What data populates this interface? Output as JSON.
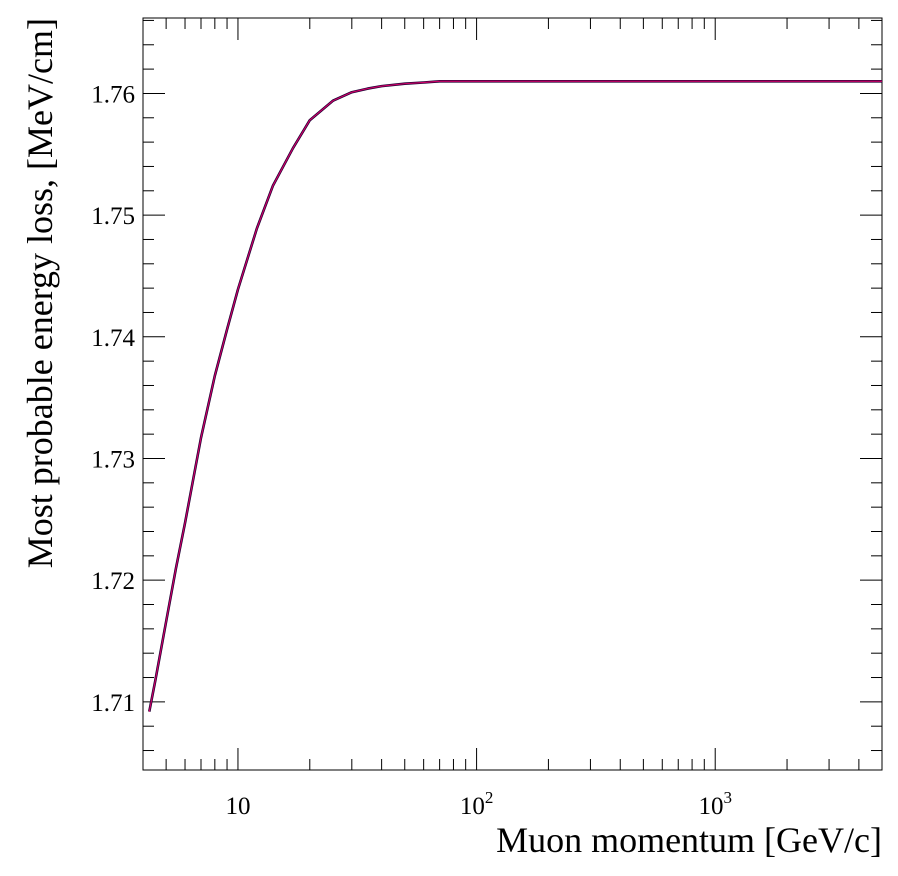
{
  "chart_data": {
    "type": "line",
    "title": "",
    "xlabel": "Muon momentum [GeV/c]",
    "ylabel": "Most probable energy loss, [MeV/cm]",
    "xscale": "log",
    "xlim": [
      4.0,
      5000
    ],
    "ylim": [
      1.7044,
      1.7662
    ],
    "grid": false,
    "legend": "none",
    "x_ticks": [
      {
        "value": 10,
        "base": "10",
        "exp": ""
      },
      {
        "value": 100,
        "base": "10",
        "exp": "2"
      },
      {
        "value": 1000,
        "base": "10",
        "exp": "3"
      }
    ],
    "y_ticks": [
      {
        "value": 1.71,
        "label": "1.71"
      },
      {
        "value": 1.72,
        "label": "1.72"
      },
      {
        "value": 1.73,
        "label": "1.73"
      },
      {
        "value": 1.74,
        "label": "1.74"
      },
      {
        "value": 1.75,
        "label": "1.75"
      },
      {
        "value": 1.76,
        "label": "1.76"
      }
    ],
    "series": [
      {
        "color": "#cc0066",
        "x": [
          4.25,
          4.5,
          5.0,
          5.5,
          6.0,
          7.0,
          8.0,
          9.0,
          10.0,
          12.0,
          14.0,
          17.0,
          20.0,
          25.0,
          30.0,
          35.0,
          40.0,
          50.0,
          60.0,
          70.0,
          80.0,
          100.0,
          200.0,
          500.0,
          1000.0,
          2000.0,
          5000.0
        ],
        "y": [
          1.7092,
          1.7117,
          1.7166,
          1.721,
          1.7247,
          1.7317,
          1.7368,
          1.7406,
          1.7439,
          1.7489,
          1.7524,
          1.7555,
          1.7578,
          1.7594,
          1.7601,
          1.7604,
          1.7606,
          1.7608,
          1.7609,
          1.761,
          1.761,
          1.761,
          1.761,
          1.761,
          1.761,
          1.761,
          1.761
        ]
      }
    ]
  }
}
